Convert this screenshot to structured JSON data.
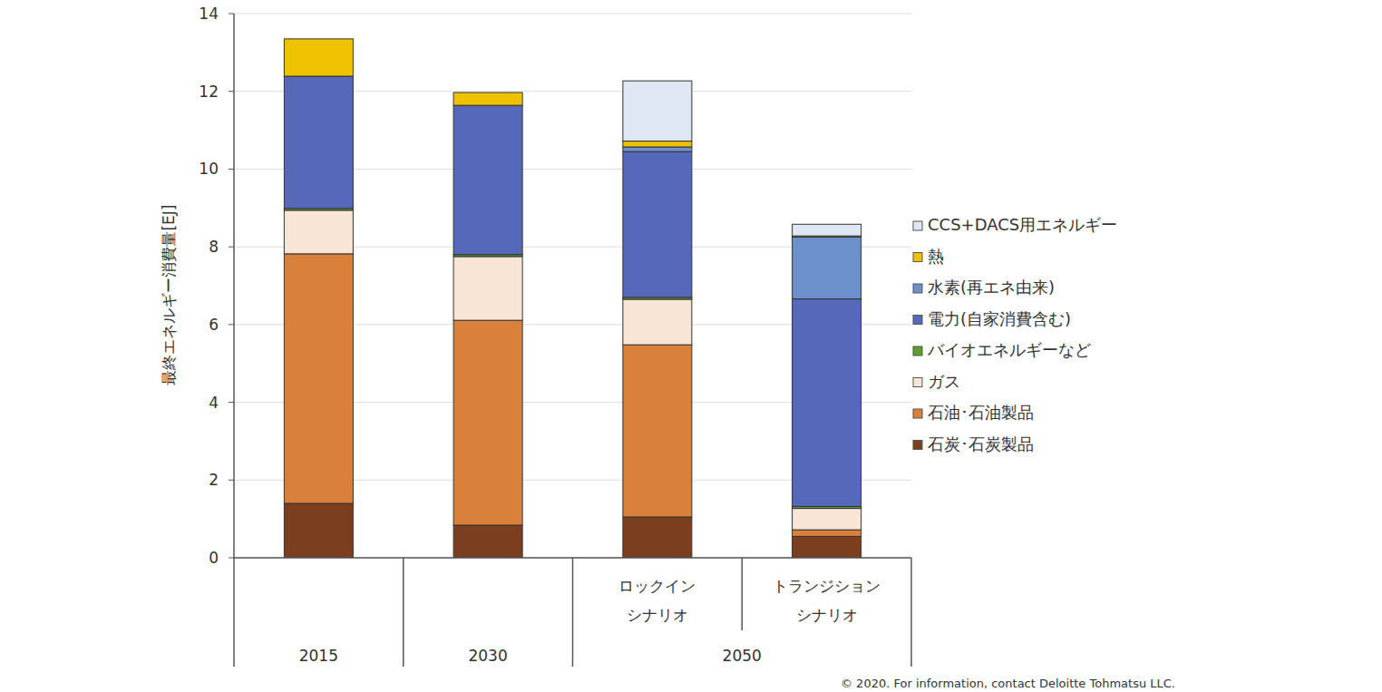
{
  "chart_data": {
    "type": "bar",
    "stacked": true,
    "y_label": "最終エネルギー消費量[EJ]",
    "categories": [
      null,
      null,
      "ロックイン\nシナリオ",
      "トランジション\nシナリオ"
    ],
    "category_groups": [
      {
        "label": "2015",
        "size": 1
      },
      {
        "label": "2030",
        "size": 1
      },
      {
        "label": "2050",
        "size": 2
      }
    ],
    "series": [
      {
        "name": "石炭･石炭製品",
        "color": "#7b3f1f",
        "values": [
          1.4,
          0.84,
          1.05,
          0.55
        ]
      },
      {
        "name": "石油･石油製品",
        "color": "#d9803a",
        "values": [
          6.42,
          5.27,
          4.43,
          0.17
        ]
      },
      {
        "name": "ガス",
        "color": "#f8e5d6",
        "values": [
          1.12,
          1.64,
          1.17,
          0.55
        ]
      },
      {
        "name": "バイオエネルギーなど",
        "color": "#5aa02c",
        "values": [
          0.05,
          0.05,
          0.05,
          0.05
        ]
      },
      {
        "name": "電力(自家消費含む)",
        "color": "#5668b9",
        "values": [
          3.4,
          3.84,
          3.75,
          5.34
        ]
      },
      {
        "name": "水素(再エネ由来)",
        "color": "#6c90cc",
        "values": [
          0,
          0,
          0.12,
          1.59
        ]
      },
      {
        "name": "熱",
        "color": "#eec200",
        "values": [
          0.96,
          0.33,
          0.15,
          0.03
        ]
      },
      {
        "name": "CCS+DACS用エネルギー",
        "color": "#dfe7f4",
        "values": [
          0,
          0,
          1.55,
          0.3
        ]
      }
    ],
    "ylim": [
      0,
      14
    ],
    "yticks": [
      0,
      2,
      4,
      6,
      8,
      10,
      12,
      14
    ],
    "grid": true,
    "legend": "right",
    "annotation": "© 2020. For information, contact Deloitte Tohmatsu LLC."
  }
}
